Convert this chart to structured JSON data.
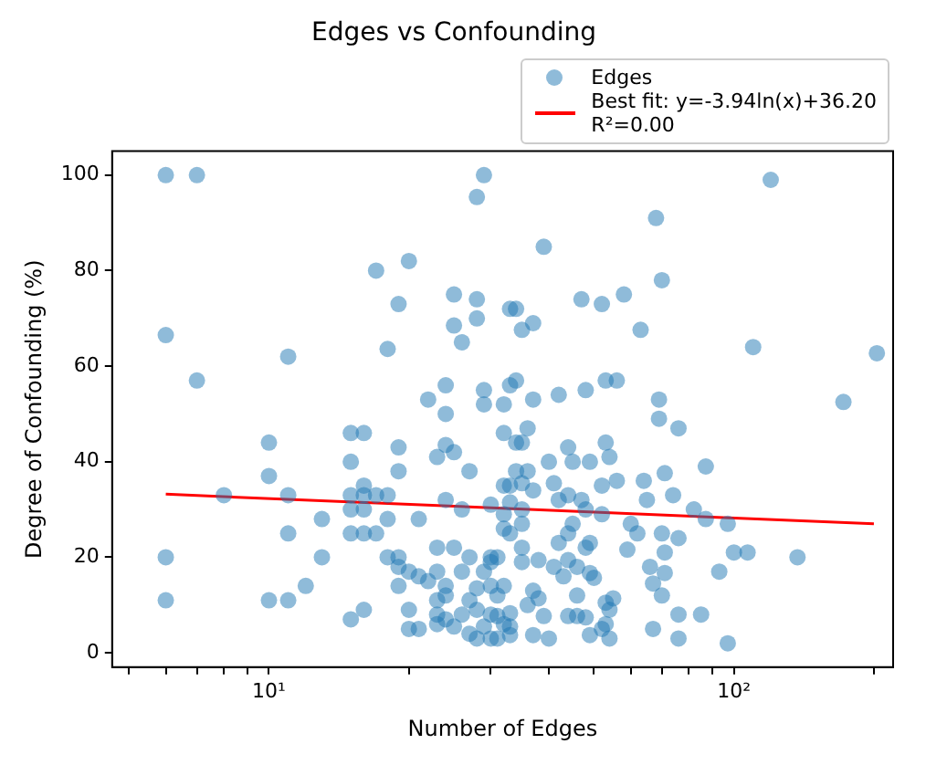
{
  "chart_data": {
    "type": "scatter",
    "title": "Edges vs Confounding",
    "xlabel": "Number of Edges",
    "ylabel": "Degree of Confounding (%)",
    "log": "x",
    "grid": false,
    "legend": "top right",
    "xlim": [
      4.6,
      220
    ],
    "xticks": [
      {
        "value": 5,
        "label": null
      },
      {
        "value": 6,
        "label": null
      },
      {
        "value": 7,
        "label": null
      },
      {
        "value": 8,
        "label": null
      },
      {
        "value": 9,
        "label": null
      },
      {
        "value": 10,
        "label": "10¹"
      },
      {
        "value": 20,
        "label": null
      },
      {
        "value": 30,
        "label": null
      },
      {
        "value": 40,
        "label": null
      },
      {
        "value": 50,
        "label": null
      },
      {
        "value": 60,
        "label": null
      },
      {
        "value": 70,
        "label": null
      },
      {
        "value": 80,
        "label": null
      },
      {
        "value": 90,
        "label": null
      },
      {
        "value": 100,
        "label": "10²"
      },
      {
        "value": 200,
        "label": null
      }
    ],
    "ylim": [
      -3,
      105
    ],
    "yticks": [
      0,
      20,
      40,
      60,
      80,
      100
    ],
    "series": [
      {
        "name": "Edges",
        "type": "scatter",
        "marker": "circle",
        "color": "#1f77b4",
        "x": [
          6,
          7,
          6,
          7,
          11,
          17,
          20,
          19,
          18,
          25,
          28,
          25,
          28,
          26,
          29,
          28,
          24,
          22,
          29,
          29,
          32,
          33,
          33,
          39,
          34,
          35,
          37,
          47,
          52,
          58,
          70,
          63,
          110,
          203,
          172,
          120,
          68,
          37,
          42,
          48,
          53,
          56,
          69,
          34,
          69,
          76,
          32,
          34,
          35,
          36,
          44,
          53,
          54,
          40,
          45,
          49,
          87,
          34,
          36,
          56,
          64,
          71,
          74,
          65,
          52,
          32,
          33,
          35,
          37,
          41,
          44,
          47,
          48,
          42,
          52,
          33,
          32,
          35,
          82,
          87,
          97,
          60,
          62,
          70,
          76,
          32,
          33,
          35,
          44,
          45,
          49,
          48,
          42,
          35,
          59,
          71,
          100,
          107,
          137,
          35,
          38,
          44,
          46,
          41,
          43,
          49,
          50,
          66,
          71,
          67,
          70,
          93,
          30,
          32,
          37,
          38,
          36,
          46,
          53,
          55,
          54,
          44,
          46,
          48,
          39,
          33,
          31,
          32,
          33,
          33,
          37,
          40,
          49,
          52,
          53,
          54,
          67,
          76,
          85,
          76,
          97,
          30,
          30,
          6,
          6,
          8,
          10,
          10,
          10,
          11,
          11,
          11,
          13,
          13,
          12,
          15,
          16,
          15,
          15,
          16,
          16,
          17,
          18,
          15,
          16,
          15,
          16,
          17,
          18,
          19,
          19,
          21,
          18,
          19,
          19,
          19,
          15,
          16,
          20,
          20,
          21,
          20,
          21,
          22,
          23,
          23,
          24,
          24,
          25,
          27,
          23,
          23,
          23,
          24,
          25,
          26,
          27,
          27,
          28,
          28,
          29,
          26,
          29,
          30,
          31,
          28,
          30,
          31,
          24,
          26,
          27,
          24,
          23,
          25,
          24,
          30,
          31
        ],
        "values": [
          100,
          100,
          66.5,
          57,
          62,
          80,
          82,
          73,
          63.6,
          75,
          74,
          68.5,
          70,
          65,
          100,
          95.4,
          56,
          53,
          55,
          52,
          52,
          72,
          56,
          85,
          72,
          67.6,
          69,
          74,
          73,
          75,
          78,
          67.6,
          64,
          62.7,
          52.5,
          99,
          91,
          53,
          54,
          55,
          57,
          57,
          53,
          57,
          49,
          47,
          46,
          44,
          44,
          47,
          43,
          44,
          41,
          40,
          40,
          40,
          39,
          38,
          38,
          36,
          36,
          37.6,
          33,
          32,
          35,
          35,
          35,
          35.5,
          34,
          35.5,
          33,
          32,
          30,
          32,
          29,
          31.5,
          29,
          30,
          30,
          28,
          27,
          27,
          25,
          25,
          24,
          26,
          25,
          27,
          25,
          27,
          23,
          22,
          23,
          22,
          21.6,
          21,
          21,
          21,
          20,
          19,
          19.4,
          19.4,
          18,
          18,
          16,
          16.7,
          15.7,
          18,
          16.7,
          14.5,
          12,
          17,
          20,
          14,
          13,
          11.4,
          10,
          12,
          10.5,
          11.4,
          9,
          7.7,
          7.7,
          7.4,
          7.7,
          8.3,
          7.7,
          6,
          5.5,
          3.7,
          3.7,
          3,
          3.7,
          5,
          6,
          3,
          5,
          8,
          8,
          3,
          2,
          3,
          8,
          20,
          11,
          33,
          44,
          37,
          11,
          33,
          25,
          11,
          28,
          20,
          14,
          46,
          46,
          40,
          33,
          35,
          33,
          33,
          33,
          30,
          30,
          25,
          25,
          25,
          28,
          43,
          38,
          28,
          20,
          20,
          18,
          14,
          7,
          9,
          9,
          5,
          5,
          17,
          16,
          15,
          17,
          22,
          14,
          12,
          22,
          20,
          11,
          8,
          6,
          7,
          5.5,
          8,
          11,
          4,
          3,
          9,
          5.5,
          17,
          17,
          19,
          20,
          13.5,
          14,
          12,
          32,
          30,
          38,
          43.5,
          41,
          42,
          50,
          31,
          3
        ]
      },
      {
        "name": "Best fit: y=-3.94ln(x)+36.20\nR²=0.00",
        "type": "line",
        "marker": "none",
        "color": "#ff0000",
        "x": [
          6,
          200
        ],
        "values": [
          33.2,
          27.0
        ]
      }
    ]
  }
}
